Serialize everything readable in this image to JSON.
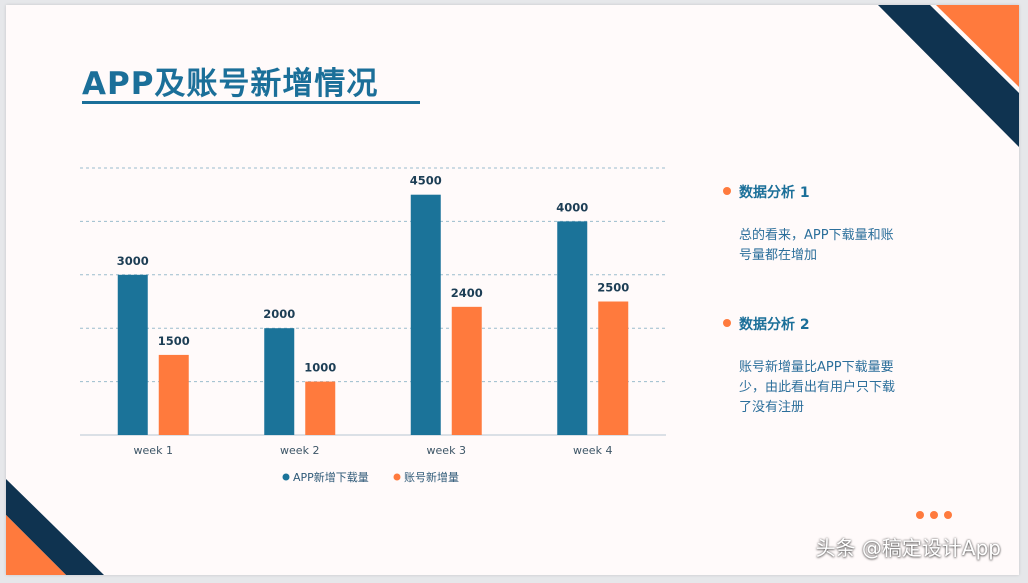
{
  "slide": {
    "title": "APP及账号新增情况"
  },
  "analysis": [
    {
      "heading": "数据分析 1",
      "lines": [
        "总的看来，APP下载量和账",
        "号量都在增加"
      ]
    },
    {
      "heading": "数据分析 2",
      "lines": [
        "账号新增量比APP下载量要",
        "少，由此看出有用户只下载",
        "了没有注册"
      ]
    }
  ],
  "watermark": "头条 @稿定设计App",
  "colors": {
    "blue": "#1b7399",
    "orange": "#ff7a3d",
    "navy": "#0f3350",
    "axis": "#b7c7d3",
    "grid": "#9bbccd"
  },
  "chart_data": {
    "type": "bar",
    "categories": [
      "week 1",
      "week 2",
      "week 3",
      "week 4"
    ],
    "series": [
      {
        "name": "APP新增下载量",
        "values": [
          3000,
          2000,
          4500,
          4000
        ],
        "color": "#1b7399"
      },
      {
        "name": "账号新增量",
        "values": [
          1500,
          1000,
          2400,
          2500
        ],
        "color": "#ff7a3d"
      }
    ],
    "ylim": [
      0,
      5000
    ],
    "grid": true,
    "legend": "bottom",
    "data_labels": true
  }
}
